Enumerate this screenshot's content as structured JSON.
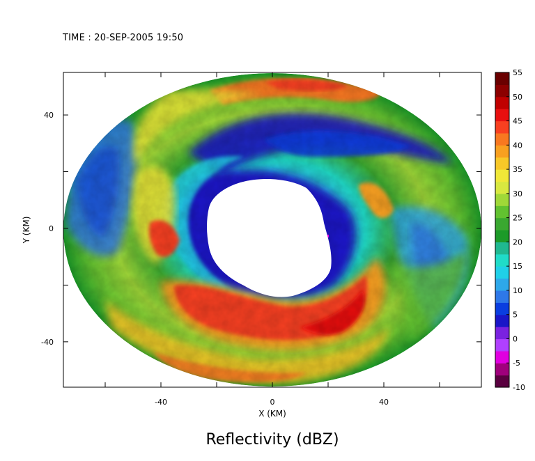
{
  "time_label": "TIME : 20-SEP-2005 19:50",
  "chart_data": {
    "type": "heatmap",
    "title": "Reflectivity (dBZ)",
    "xlabel": "X (KM)",
    "ylabel": "Y (KM)",
    "xlim": [
      -75,
      75
    ],
    "ylim": [
      -56,
      55
    ],
    "x_tick_labels": [
      -40,
      0,
      40
    ],
    "y_tick_labels": [
      40,
      0,
      -40
    ],
    "colorbar": {
      "label_values": [
        55,
        50,
        45,
        40,
        35,
        30,
        25,
        20,
        15,
        10,
        5,
        0,
        -5,
        -10
      ],
      "min": -10,
      "max": 55,
      "colors": [
        "#5a0040",
        "#a0007c",
        "#e000e0",
        "#b040ff",
        "#7a22e0",
        "#1a16c8",
        "#0a3ee0",
        "#2e78e8",
        "#2ea8ea",
        "#20d0e8",
        "#20dcc8",
        "#20b890",
        "#1c9a28",
        "#3aa830",
        "#62c230",
        "#a0d838",
        "#d8e840",
        "#f0e838",
        "#f8c828",
        "#f8a020",
        "#f87820",
        "#f84020",
        "#e81010",
        "#c00000",
        "#8c0000",
        "#6a0000"
      ]
    }
  }
}
